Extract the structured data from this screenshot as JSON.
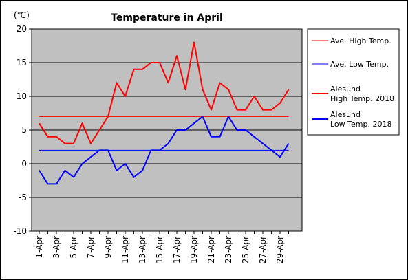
{
  "chart_data": {
    "type": "line",
    "title": "Temperature in April",
    "unit_label": "(℃)",
    "xlabel": "",
    "ylabel": "",
    "ylim": [
      -10,
      20
    ],
    "yticks": [
      -10,
      -5,
      0,
      5,
      10,
      15,
      20
    ],
    "grid": "horizontal",
    "legend_placement": "right",
    "x": [
      "1-Apr",
      "2-Apr",
      "3-Apr",
      "4-Apr",
      "5-Apr",
      "6-Apr",
      "7-Apr",
      "8-Apr",
      "9-Apr",
      "10-Apr",
      "11-Apr",
      "12-Apr",
      "13-Apr",
      "14-Apr",
      "15-Apr",
      "16-Apr",
      "17-Apr",
      "18-Apr",
      "19-Apr",
      "20-Apr",
      "21-Apr",
      "22-Apr",
      "23-Apr",
      "24-Apr",
      "25-Apr",
      "26-Apr",
      "27-Apr",
      "28-Apr",
      "29-Apr",
      "30-Apr"
    ],
    "x_tick_labels": [
      "1-Apr",
      "3-Apr",
      "5-Apr",
      "7-Apr",
      "9-Apr",
      "11-Apr",
      "13-Apr",
      "15-Apr",
      "17-Apr",
      "19-Apr",
      "21-Apr",
      "23-Apr",
      "25-Apr",
      "27-Apr",
      "29-Apr"
    ],
    "series": [
      {
        "name": "Ave. High Temp.",
        "color": "#ff0000",
        "width": "thin",
        "values": [
          7,
          7,
          7,
          7,
          7,
          7,
          7,
          7,
          7,
          7,
          7,
          7,
          7,
          7,
          7,
          7,
          7,
          7,
          7,
          7,
          7,
          7,
          7,
          7,
          7,
          7,
          7,
          7,
          7,
          7
        ]
      },
      {
        "name": "Ave. Low Temp.",
        "color": "#0000ff",
        "width": "thin",
        "values": [
          2,
          2,
          2,
          2,
          2,
          2,
          2,
          2,
          2,
          2,
          2,
          2,
          2,
          2,
          2,
          2,
          2,
          2,
          2,
          2,
          2,
          2,
          2,
          2,
          2,
          2,
          2,
          2,
          2,
          2
        ]
      },
      {
        "name": "Alesund\nHigh Temp. 2018",
        "color": "#ff0000",
        "width": "thick",
        "values": [
          6,
          4,
          4,
          3,
          3,
          6,
          3,
          5,
          7,
          12,
          10,
          14,
          14,
          15,
          15,
          12,
          16,
          11,
          18,
          11,
          8,
          12,
          11,
          8,
          8,
          10,
          8,
          8,
          9,
          11
        ]
      },
      {
        "name": "Alesund\nLow Temp. 2018",
        "color": "#0000ff",
        "width": "thick",
        "values": [
          -1,
          -3,
          -3,
          -1,
          -2,
          0,
          1,
          2,
          2,
          -1,
          0,
          -2,
          -1,
          2,
          2,
          3,
          5,
          5,
          6,
          7,
          4,
          4,
          7,
          5,
          5,
          4,
          3,
          2,
          1,
          3
        ]
      }
    ],
    "colors": {
      "plot_background": "#c0c0c0",
      "gridline": "#000000"
    }
  }
}
